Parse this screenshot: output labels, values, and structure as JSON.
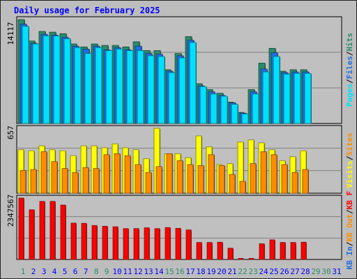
{
  "chart_data": [
    {
      "type": "bar",
      "title": "Daily usage for February 2025",
      "ymax_label": "14117",
      "legend": [
        "Pages",
        "/",
        "Files",
        "/",
        "Hits"
      ],
      "categories": [
        "1",
        "2",
        "3",
        "4",
        "5",
        "6",
        "7",
        "8",
        "9",
        "10",
        "11",
        "12",
        "13",
        "14",
        "15",
        "16",
        "17",
        "18",
        "19",
        "20",
        "21",
        "22",
        "23",
        "24",
        "25",
        "26",
        "27",
        "28",
        "29",
        "30",
        "31"
      ],
      "series": [
        {
          "name": "Hits",
          "values": [
            14117,
            11200,
            12500,
            12400,
            12200,
            10800,
            10400,
            10800,
            10600,
            10600,
            10400,
            11100,
            9900,
            9900,
            7300,
            9500,
            11800,
            5400,
            4600,
            4100,
            2900,
            1500,
            4600,
            8200,
            10200,
            7100,
            7300,
            7300,
            null,
            null,
            null
          ]
        },
        {
          "name": "Files",
          "values": [
            13500,
            10900,
            12100,
            12000,
            11700,
            10500,
            10100,
            10500,
            10000,
            10300,
            10000,
            10500,
            9500,
            9400,
            7100,
            9200,
            11300,
            5100,
            4300,
            3800,
            2800,
            1400,
            4300,
            7400,
            9600,
            6900,
            7000,
            7000,
            null,
            null,
            null
          ]
        },
        {
          "name": "Pages",
          "values": [
            13200,
            10800,
            11900,
            11900,
            11500,
            10300,
            9500,
            10300,
            9900,
            10100,
            9900,
            9900,
            9200,
            9100,
            6900,
            8900,
            11000,
            5000,
            4000,
            3700,
            2600,
            1300,
            4000,
            7000,
            9100,
            6700,
            6800,
            6800,
            null,
            null,
            null
          ]
        }
      ]
    },
    {
      "type": "bar",
      "ymax_label": "657",
      "legend": [
        "Visits",
        "/",
        "Sites"
      ],
      "categories": [
        "1",
        "2",
        "3",
        "4",
        "5",
        "6",
        "7",
        "8",
        "9",
        "10",
        "11",
        "12",
        "13",
        "14",
        "15",
        "16",
        "17",
        "18",
        "19",
        "20",
        "21",
        "22",
        "23",
        "24",
        "25",
        "26",
        "27",
        "28",
        "29",
        "30",
        "31"
      ],
      "series": [
        {
          "name": "Visits",
          "values": [
            440,
            430,
            480,
            440,
            430,
            380,
            480,
            480,
            460,
            500,
            460,
            440,
            350,
            657,
            400,
            400,
            360,
            580,
            470,
            290,
            300,
            520,
            540,
            510,
            440,
            330,
            370,
            430,
            null,
            null,
            null
          ]
        },
        {
          "name": "Sites",
          "values": [
            230,
            240,
            420,
            320,
            250,
            210,
            260,
            250,
            390,
            400,
            380,
            290,
            210,
            270,
            400,
            330,
            290,
            280,
            390,
            280,
            190,
            120,
            300,
            420,
            390,
            290,
            210,
            240,
            null,
            null,
            null
          ]
        }
      ]
    },
    {
      "type": "bar",
      "ymax_label": "2347567",
      "legend": [
        "KB In",
        "/",
        "KB Out",
        "/",
        "KB F"
      ],
      "categories": [
        "1",
        "2",
        "3",
        "4",
        "5",
        "6",
        "7",
        "8",
        "9",
        "10",
        "11",
        "12",
        "13",
        "14",
        "15",
        "16",
        "17",
        "18",
        "19",
        "20",
        "21",
        "22",
        "23",
        "24",
        "25",
        "26",
        "27",
        "28",
        "29",
        "30",
        "31"
      ],
      "series": [
        {
          "name": "KB F",
          "values": [
            2347567,
            1900000,
            2220000,
            2220000,
            2080000,
            1390000,
            1380000,
            1300000,
            1270000,
            1250000,
            1180000,
            1180000,
            1210000,
            1180000,
            1220000,
            1190000,
            1130000,
            650000,
            650000,
            660000,
            430000,
            40000,
            40000,
            600000,
            750000,
            650000,
            650000,
            660000,
            null,
            null,
            null
          ]
        }
      ]
    }
  ],
  "colors": {
    "hits": "#2a8c6b",
    "files": "#1f6fe0",
    "pages": "#00e0ff",
    "visits": "#ffff00",
    "sites": "#ff8c00",
    "kbf": "#ff0000",
    "kbin": "#1f6fe0",
    "kbout": "#ff8c00",
    "day_weekday": "#0000ff",
    "day_weekend": "#2a8c6b",
    "title": "#0000ff"
  },
  "day_colors": [
    "green",
    "blue",
    "blue",
    "blue",
    "blue",
    "blue",
    "blue",
    "green",
    "green",
    "blue",
    "blue",
    "blue",
    "blue",
    "blue",
    "green",
    "green",
    "blue",
    "blue",
    "blue",
    "blue",
    "blue",
    "green",
    "green",
    "blue",
    "blue",
    "blue",
    "blue",
    "blue",
    "green",
    "green",
    "blue"
  ]
}
